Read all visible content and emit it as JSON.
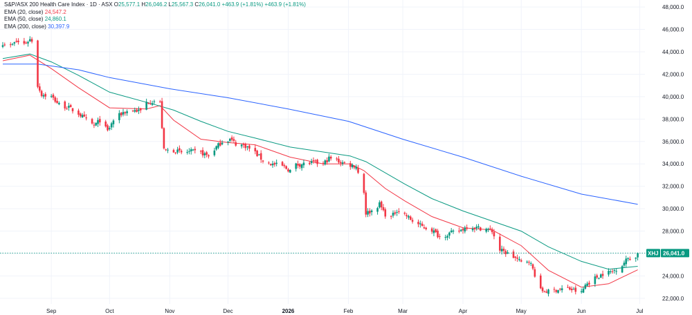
{
  "legend": {
    "title": "S&P/ASX 200 Health Care Index · 1D · ASX",
    "open_label": "O",
    "open": "25,577.1",
    "high_label": "H",
    "high": "26,046.2",
    "low_label": "L",
    "low": "25,567.3",
    "close_label": "C",
    "close": "26,041.0",
    "change": "+463.9 (+1.81%)",
    "change2": "+463.9 (+1.81%)",
    "ema20_label": "EMA (20, close)",
    "ema20_value": "24,547.2",
    "ema50_label": "EMA (50, close)",
    "ema50_value": "24,860.1",
    "ema200_label": "EMA (200, close)",
    "ema200_value": "30,397.9"
  },
  "price_tag": {
    "symbol": "XHJ",
    "value": "26,041.0"
  },
  "colors": {
    "up": "#089981",
    "down": "#f23645",
    "ema20": "#f23645",
    "ema50": "#089981",
    "ema200": "#2962ff",
    "grid": "#f0f3fa",
    "axis_text": "#131722"
  },
  "chart_data": {
    "type": "candlestick",
    "title": "S&P/ASX 200 Health Care Index · 1D · ASX",
    "ylim": [
      21500,
      48500
    ],
    "y_ticks": [
      22000,
      24000,
      26000,
      28000,
      30000,
      32000,
      34000,
      36000,
      38000,
      40000,
      42000,
      44000,
      46000,
      48000
    ],
    "y_tick_labels": [
      "22,000.0",
      "24,000.0",
      "26,000.0",
      "28,000.0",
      "30,000.0",
      "32,000.0",
      "34,000.0",
      "36,000.0",
      "38,000.0",
      "40,000.0",
      "42,000.0",
      "44,000.0",
      "46,000.0",
      "48,000.0"
    ],
    "x_labels": [
      {
        "label": "Sep",
        "date": "2025-09-01",
        "bold": false
      },
      {
        "label": "Oct",
        "date": "2025-10-01",
        "bold": false
      },
      {
        "label": "Nov",
        "date": "2025-11-01",
        "bold": false
      },
      {
        "label": "Dec",
        "date": "2025-12-01",
        "bold": false
      },
      {
        "label": "2026",
        "date": "2026-01-01",
        "bold": true
      },
      {
        "label": "Feb",
        "date": "2026-02-01",
        "bold": false
      },
      {
        "label": "Mar",
        "date": "2026-03-01",
        "bold": false
      },
      {
        "label": "Apr",
        "date": "2026-04-01",
        "bold": false
      },
      {
        "label": "May",
        "date": "2026-05-01",
        "bold": false
      },
      {
        "label": "Jun",
        "date": "2026-06-01",
        "bold": false
      },
      {
        "label": "Jul",
        "date": "2026-07-01",
        "bold": false
      }
    ],
    "x_range": [
      "2025-08-07",
      "2026-07-03"
    ],
    "last_close": 26041.0,
    "close_anchors": [
      [
        "2025-08-07",
        44800
      ],
      [
        "2025-08-11",
        44500
      ],
      [
        "2025-08-14",
        44900
      ],
      [
        "2025-08-18",
        44700
      ],
      [
        "2025-08-21",
        45100
      ],
      [
        "2025-08-22",
        45000
      ],
      [
        "2025-08-25",
        41000
      ],
      [
        "2025-08-27",
        40200
      ],
      [
        "2025-09-01",
        40000
      ],
      [
        "2025-09-05",
        39300
      ],
      [
        "2025-09-10",
        39000
      ],
      [
        "2025-09-15",
        38500
      ],
      [
        "2025-09-19",
        37900
      ],
      [
        "2025-09-23",
        37400
      ],
      [
        "2025-09-26",
        37900
      ],
      [
        "2025-09-30",
        36900
      ],
      [
        "2025-10-03",
        37900
      ],
      [
        "2025-10-08",
        38600
      ],
      [
        "2025-10-13",
        38800
      ],
      [
        "2025-10-17",
        38700
      ],
      [
        "2025-10-20",
        39500
      ],
      [
        "2025-10-24",
        39600
      ],
      [
        "2025-10-27",
        39400
      ],
      [
        "2025-10-29",
        35200
      ],
      [
        "2025-11-03",
        35200
      ],
      [
        "2025-11-07",
        35000
      ],
      [
        "2025-11-12",
        35100
      ],
      [
        "2025-11-17",
        35000
      ],
      [
        "2025-11-21",
        34700
      ],
      [
        "2025-11-25",
        35500
      ],
      [
        "2025-11-28",
        36000
      ],
      [
        "2025-12-02",
        36200
      ],
      [
        "2025-12-05",
        35800
      ],
      [
        "2025-12-10",
        35600
      ],
      [
        "2025-12-15",
        35000
      ],
      [
        "2025-12-19",
        34300
      ],
      [
        "2025-12-23",
        34000
      ],
      [
        "2025-12-29",
        33800
      ],
      [
        "2026-01-02",
        33400
      ],
      [
        "2026-01-05",
        33900
      ],
      [
        "2026-01-09",
        34000
      ],
      [
        "2026-01-14",
        34100
      ],
      [
        "2026-01-19",
        34000
      ],
      [
        "2026-01-22",
        34500
      ],
      [
        "2026-01-26",
        34300
      ],
      [
        "2026-01-29",
        34100
      ],
      [
        "2026-02-02",
        33900
      ],
      [
        "2026-02-05",
        33800
      ],
      [
        "2026-02-09",
        31500
      ],
      [
        "2026-02-10",
        29600
      ],
      [
        "2026-02-13",
        29800
      ],
      [
        "2026-02-17",
        30400
      ],
      [
        "2026-02-20",
        29500
      ],
      [
        "2026-02-23",
        29200
      ],
      [
        "2026-02-26",
        29900
      ],
      [
        "2026-03-02",
        29500
      ],
      [
        "2026-03-06",
        28900
      ],
      [
        "2026-03-11",
        28400
      ],
      [
        "2026-03-16",
        28100
      ],
      [
        "2026-03-20",
        27500
      ],
      [
        "2026-03-25",
        27800
      ],
      [
        "2026-03-30",
        28000
      ],
      [
        "2026-04-03",
        28400
      ],
      [
        "2026-04-08",
        28300
      ],
      [
        "2026-04-13",
        28200
      ],
      [
        "2026-04-16",
        28000
      ],
      [
        "2026-04-20",
        26300
      ],
      [
        "2026-04-24",
        26000
      ],
      [
        "2026-04-28",
        25600
      ],
      [
        "2026-05-01",
        25200
      ],
      [
        "2026-05-05",
        25400
      ],
      [
        "2026-05-07",
        24600
      ],
      [
        "2026-05-11",
        22700
      ],
      [
        "2026-05-15",
        22600
      ],
      [
        "2026-05-20",
        22800
      ],
      [
        "2026-05-25",
        22900
      ],
      [
        "2026-05-28",
        22700
      ],
      [
        "2026-06-01",
        22500
      ],
      [
        "2026-06-03",
        23200
      ],
      [
        "2026-06-08",
        23800
      ],
      [
        "2026-06-12",
        24200
      ],
      [
        "2026-06-17",
        24400
      ],
      [
        "2026-06-22",
        25000
      ],
      [
        "2026-06-25",
        25600
      ],
      [
        "2026-06-29",
        25600
      ],
      [
        "2026-06-30",
        26041
      ]
    ],
    "series": [
      {
        "name": "EMA (20, close)",
        "color": "#f23645",
        "points": [
          [
            "2025-08-07",
            43200
          ],
          [
            "2025-08-21",
            43700
          ],
          [
            "2025-09-01",
            42500
          ],
          [
            "2025-09-15",
            40800
          ],
          [
            "2025-10-01",
            39000
          ],
          [
            "2025-10-20",
            38900
          ],
          [
            "2025-10-27",
            39200
          ],
          [
            "2025-11-03",
            37900
          ],
          [
            "2025-11-17",
            36200
          ],
          [
            "2025-12-01",
            35900
          ],
          [
            "2025-12-15",
            35700
          ],
          [
            "2026-01-02",
            34600
          ],
          [
            "2026-01-19",
            34000
          ],
          [
            "2026-02-02",
            34000
          ],
          [
            "2026-02-09",
            33400
          ],
          [
            "2026-02-20",
            31800
          ],
          [
            "2026-03-02",
            30700
          ],
          [
            "2026-03-16",
            29300
          ],
          [
            "2026-04-01",
            28300
          ],
          [
            "2026-04-16",
            28100
          ],
          [
            "2026-05-01",
            26700
          ],
          [
            "2026-05-15",
            24500
          ],
          [
            "2026-06-01",
            23000
          ],
          [
            "2026-06-15",
            23300
          ],
          [
            "2026-06-30",
            24547
          ]
        ]
      },
      {
        "name": "EMA (50, close)",
        "color": "#089981",
        "points": [
          [
            "2025-08-07",
            43400
          ],
          [
            "2025-08-21",
            43800
          ],
          [
            "2025-09-01",
            43100
          ],
          [
            "2025-09-15",
            41900
          ],
          [
            "2025-10-01",
            40400
          ],
          [
            "2025-10-24",
            39300
          ],
          [
            "2025-11-03",
            38800
          ],
          [
            "2025-11-17",
            37800
          ],
          [
            "2025-12-01",
            36900
          ],
          [
            "2025-12-15",
            36300
          ],
          [
            "2026-01-02",
            35500
          ],
          [
            "2026-02-02",
            34700
          ],
          [
            "2026-02-10",
            34200
          ],
          [
            "2026-03-02",
            32200
          ],
          [
            "2026-03-16",
            30900
          ],
          [
            "2026-04-01",
            29800
          ],
          [
            "2026-04-16",
            28900
          ],
          [
            "2026-05-01",
            28000
          ],
          [
            "2026-05-15",
            26600
          ],
          [
            "2026-06-01",
            25300
          ],
          [
            "2026-06-15",
            24600
          ],
          [
            "2026-06-30",
            24860
          ]
        ]
      },
      {
        "name": "EMA (200, close)",
        "color": "#2962ff",
        "points": [
          [
            "2025-08-07",
            42900
          ],
          [
            "2025-08-25",
            42900
          ],
          [
            "2025-09-15",
            42400
          ],
          [
            "2025-10-01",
            41700
          ],
          [
            "2025-11-01",
            40700
          ],
          [
            "2025-12-01",
            39900
          ],
          [
            "2026-01-01",
            38900
          ],
          [
            "2026-02-01",
            37800
          ],
          [
            "2026-03-01",
            36200
          ],
          [
            "2026-04-01",
            34600
          ],
          [
            "2026-05-01",
            32900
          ],
          [
            "2026-06-01",
            31300
          ],
          [
            "2026-06-30",
            30398
          ]
        ]
      }
    ]
  }
}
